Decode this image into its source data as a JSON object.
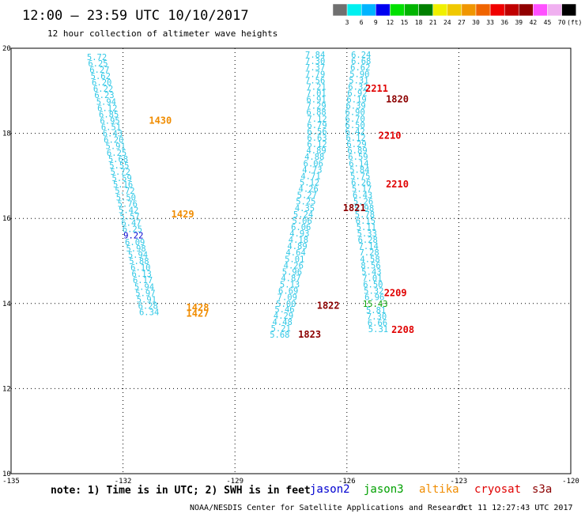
{
  "title": "12:00 – 23:59 UTC 10/10/2017",
  "subtitle": "12 hour collection of altimeter wave heights",
  "note": "note: 1) Time is in UTC; 2) SWH is in feet",
  "footer": "NOAA/NESDIS Center for Satellite Applications and Research",
  "footer_time": "Oct 11 12:27:43 UTC 2017",
  "colorbar": {
    "unit": "(ft)",
    "labels": [
      "3",
      "6",
      "9",
      "12",
      "15",
      "18",
      "21",
      "24",
      "27",
      "30",
      "33",
      "36",
      "39",
      "42",
      "45",
      "70"
    ],
    "colors": [
      "#707070",
      "#00f0f0",
      "#00b4ff",
      "#0000f0",
      "#00e000",
      "#00b400",
      "#008000",
      "#f0f000",
      "#f0c800",
      "#f09600",
      "#f06400",
      "#f00000",
      "#c00000",
      "#900000",
      "#ff50ff",
      "#f0b0f0",
      "#000000"
    ]
  },
  "legend": [
    {
      "label": "jason2",
      "color": "#0000d0"
    },
    {
      "label": "jason3",
      "color": "#00a000"
    },
    {
      "label": "altika",
      "color": "#f08c00"
    },
    {
      "label": "cryosat",
      "color": "#e00000"
    },
    {
      "label": "s3a",
      "color": "#8c0000"
    }
  ],
  "chart_data": {
    "type": "scatter",
    "xlim": [
      -135,
      -120
    ],
    "ylim": [
      10,
      20
    ],
    "xticks": [
      -132,
      -129,
      -126,
      -123
    ],
    "xtick_labels": [
      "-135",
      "-132",
      "-129",
      "-126",
      "-123",
      "-120"
    ],
    "yticks": [
      12,
      14,
      16,
      18
    ],
    "ytick_labels": [
      "10",
      "12",
      "14",
      "16",
      "18",
      "20"
    ],
    "grid": true,
    "tracks": [
      {
        "color": "#32c8e6",
        "points": [
          {
            "x": -132.7,
            "y": 19.8,
            "v": "5.72"
          },
          {
            "x": -132.67,
            "y": 19.65,
            "v": "6.25"
          },
          {
            "x": -132.63,
            "y": 19.5,
            "v": "6.27"
          },
          {
            "x": -132.6,
            "y": 19.35,
            "v": "5.62"
          },
          {
            "x": -132.57,
            "y": 19.2,
            "v": "6.20"
          },
          {
            "x": -132.53,
            "y": 19.05,
            "v": "6.22"
          },
          {
            "x": -132.5,
            "y": 18.9,
            "v": "6.23"
          },
          {
            "x": -132.45,
            "y": 18.75,
            "v": "5.94"
          },
          {
            "x": -132.42,
            "y": 18.6,
            "v": "6.12"
          },
          {
            "x": -132.38,
            "y": 18.45,
            "v": "6.85"
          },
          {
            "x": -132.35,
            "y": 18.3,
            "v": "6.95"
          },
          {
            "x": -132.32,
            "y": 18.15,
            "v": "6.51"
          },
          {
            "x": -132.28,
            "y": 18.0,
            "v": "6.43"
          },
          {
            "x": -132.25,
            "y": 17.85,
            "v": "6.20"
          },
          {
            "x": -132.2,
            "y": 17.7,
            "v": "5.91"
          },
          {
            "x": -132.17,
            "y": 17.55,
            "v": "6.25"
          },
          {
            "x": -132.13,
            "y": 17.4,
            "v": "5.68"
          },
          {
            "x": -132.1,
            "y": 17.25,
            "v": "5.55"
          },
          {
            "x": -132.07,
            "y": 17.1,
            "v": "5.72"
          },
          {
            "x": -132.03,
            "y": 16.95,
            "v": "5.59"
          },
          {
            "x": -132.0,
            "y": 16.8,
            "v": "5.16"
          },
          {
            "x": -131.95,
            "y": 16.65,
            "v": "5.72"
          },
          {
            "x": -131.92,
            "y": 16.5,
            "v": "5.50"
          },
          {
            "x": -131.88,
            "y": 16.35,
            "v": "5.76"
          },
          {
            "x": -131.85,
            "y": 16.2,
            "v": "5.42"
          },
          {
            "x": -131.82,
            "y": 16.05,
            "v": "5.57"
          },
          {
            "x": -131.78,
            "y": 15.9,
            "v": "6.47"
          },
          {
            "x": -131.75,
            "y": 15.75,
            "v": "6.25"
          },
          {
            "x": -131.72,
            "y": 15.6,
            "v": "9.22",
            "c": "#0000d0"
          },
          {
            "x": -131.68,
            "y": 15.45,
            "v": "6.09"
          },
          {
            "x": -131.65,
            "y": 15.3,
            "v": "5.98"
          },
          {
            "x": -131.6,
            "y": 15.15,
            "v": "5.94"
          },
          {
            "x": -131.57,
            "y": 15.0,
            "v": "5.88"
          },
          {
            "x": -131.53,
            "y": 14.85,
            "v": "6.10"
          },
          {
            "x": -131.5,
            "y": 14.7,
            "v": "6.13"
          },
          {
            "x": -131.47,
            "y": 14.55,
            "v": "6.17"
          },
          {
            "x": -131.43,
            "y": 14.4,
            "v": "5.94"
          },
          {
            "x": -131.4,
            "y": 14.25,
            "v": "5.97"
          },
          {
            "x": -131.37,
            "y": 14.1,
            "v": "5.91"
          },
          {
            "x": -131.33,
            "y": 13.95,
            "v": "6.28"
          },
          {
            "x": -131.3,
            "y": 13.8,
            "v": "6.34"
          }
        ]
      },
      {
        "color": "#32c8e6",
        "points": [
          {
            "x": -126.85,
            "y": 19.85,
            "v": "7.84"
          },
          {
            "x": -126.85,
            "y": 19.7,
            "v": "7.30"
          },
          {
            "x": -126.85,
            "y": 19.55,
            "v": "7.37"
          },
          {
            "x": -126.85,
            "y": 19.4,
            "v": "7.79"
          },
          {
            "x": -126.85,
            "y": 19.25,
            "v": "7.56"
          },
          {
            "x": -126.82,
            "y": 19.1,
            "v": "7.21"
          },
          {
            "x": -126.82,
            "y": 18.95,
            "v": "7.01"
          },
          {
            "x": -126.82,
            "y": 18.8,
            "v": "6.91"
          },
          {
            "x": -126.82,
            "y": 18.65,
            "v": "7.29"
          },
          {
            "x": -126.82,
            "y": 18.5,
            "v": "6.88"
          },
          {
            "x": -126.8,
            "y": 18.35,
            "v": "7.12"
          },
          {
            "x": -126.8,
            "y": 18.2,
            "v": "6.79"
          },
          {
            "x": -126.8,
            "y": 18.05,
            "v": "6.56"
          },
          {
            "x": -126.8,
            "y": 17.9,
            "v": "6.63"
          },
          {
            "x": -126.8,
            "y": 17.75,
            "v": "6.12"
          },
          {
            "x": -126.82,
            "y": 17.6,
            "v": "4.89"
          },
          {
            "x": -126.87,
            "y": 17.45,
            "v": "4.88"
          },
          {
            "x": -126.9,
            "y": 17.3,
            "v": "6.06"
          },
          {
            "x": -126.93,
            "y": 17.15,
            "v": "4.73"
          },
          {
            "x": -126.97,
            "y": 17.0,
            "v": "4.71"
          },
          {
            "x": -127.0,
            "y": 16.85,
            "v": "5.12"
          },
          {
            "x": -127.03,
            "y": 16.7,
            "v": "4.26"
          },
          {
            "x": -127.07,
            "y": 16.55,
            "v": "5.27"
          },
          {
            "x": -127.1,
            "y": 16.4,
            "v": "5.25"
          },
          {
            "x": -127.13,
            "y": 16.25,
            "v": "4.35"
          },
          {
            "x": -127.17,
            "y": 16.1,
            "v": "5.24"
          },
          {
            "x": -127.2,
            "y": 15.95,
            "v": "5.06"
          },
          {
            "x": -127.23,
            "y": 15.8,
            "v": "6.06"
          },
          {
            "x": -127.27,
            "y": 15.65,
            "v": "4.93"
          },
          {
            "x": -127.3,
            "y": 15.5,
            "v": "4.18"
          },
          {
            "x": -127.33,
            "y": 15.35,
            "v": "4.89"
          },
          {
            "x": -127.37,
            "y": 15.2,
            "v": "4.64"
          },
          {
            "x": -127.4,
            "y": 15.05,
            "v": "5.01"
          },
          {
            "x": -127.43,
            "y": 14.9,
            "v": "4.26"
          },
          {
            "x": -127.47,
            "y": 14.75,
            "v": "5.96"
          },
          {
            "x": -127.5,
            "y": 14.6,
            "v": "4.87"
          },
          {
            "x": -127.53,
            "y": 14.45,
            "v": "5.13"
          },
          {
            "x": -127.57,
            "y": 14.3,
            "v": "6.69"
          },
          {
            "x": -127.6,
            "y": 14.15,
            "v": "7.09"
          },
          {
            "x": -127.63,
            "y": 14.0,
            "v": "5.00"
          },
          {
            "x": -127.67,
            "y": 13.87,
            "v": "5.46"
          },
          {
            "x": -127.7,
            "y": 13.72,
            "v": "4.29"
          },
          {
            "x": -127.73,
            "y": 13.57,
            "v": "4.48"
          },
          {
            "x": -127.77,
            "y": 13.42,
            "v": "5.21"
          },
          {
            "x": -127.8,
            "y": 13.27,
            "v": "5.68"
          }
        ]
      },
      {
        "color": "#32c8e6",
        "points": [
          {
            "x": -125.62,
            "y": 19.85,
            "v": "6.24"
          },
          {
            "x": -125.62,
            "y": 19.7,
            "v": "6.68"
          },
          {
            "x": -125.64,
            "y": 19.55,
            "v": "6.62"
          },
          {
            "x": -125.66,
            "y": 19.4,
            "v": "5.90"
          },
          {
            "x": -125.68,
            "y": 19.25,
            "v": "5.31"
          },
          {
            "x": -125.7,
            "y": 19.1,
            "v": "6.32"
          },
          {
            "x": -125.72,
            "y": 18.95,
            "v": "6.92"
          },
          {
            "x": -125.74,
            "y": 18.8,
            "v": "6.19"
          },
          {
            "x": -125.76,
            "y": 18.65,
            "v": "6.39"
          },
          {
            "x": -125.78,
            "y": 18.5,
            "v": "6.90"
          },
          {
            "x": -125.78,
            "y": 18.35,
            "v": "6.70"
          },
          {
            "x": -125.78,
            "y": 18.2,
            "v": "6.50"
          },
          {
            "x": -125.78,
            "y": 18.05,
            "v": "6.42"
          },
          {
            "x": -125.76,
            "y": 17.9,
            "v": "6.12"
          },
          {
            "x": -125.74,
            "y": 17.75,
            "v": "6.29"
          },
          {
            "x": -125.72,
            "y": 17.6,
            "v": "6.89"
          },
          {
            "x": -125.7,
            "y": 17.45,
            "v": "6.59"
          },
          {
            "x": -125.68,
            "y": 17.3,
            "v": "6.14"
          },
          {
            "x": -125.66,
            "y": 17.15,
            "v": "5.84"
          },
          {
            "x": -125.64,
            "y": 17.0,
            "v": "5.75"
          },
          {
            "x": -125.62,
            "y": 16.85,
            "v": "6.26"
          },
          {
            "x": -125.6,
            "y": 16.7,
            "v": "5.17"
          },
          {
            "x": -125.58,
            "y": 16.55,
            "v": "6.43"
          },
          {
            "x": -125.56,
            "y": 16.4,
            "v": "5.26"
          },
          {
            "x": -125.54,
            "y": 16.25,
            "v": "5.98"
          },
          {
            "x": -125.52,
            "y": 16.1,
            "v": "5.78"
          },
          {
            "x": -125.5,
            "y": 15.95,
            "v": "6.15"
          },
          {
            "x": -125.48,
            "y": 15.8,
            "v": "5.11"
          },
          {
            "x": -125.46,
            "y": 15.65,
            "v": "5.33"
          },
          {
            "x": -125.44,
            "y": 15.5,
            "v": "6.28"
          },
          {
            "x": -125.42,
            "y": 15.35,
            "v": "7.14"
          },
          {
            "x": -125.4,
            "y": 15.2,
            "v": "7.28"
          },
          {
            "x": -125.38,
            "y": 15.05,
            "v": "4.58"
          },
          {
            "x": -125.36,
            "y": 14.9,
            "v": "8.56"
          },
          {
            "x": -125.34,
            "y": 14.75,
            "v": "5.43"
          },
          {
            "x": -125.32,
            "y": 14.6,
            "v": "7.01"
          },
          {
            "x": -125.3,
            "y": 14.45,
            "v": "6.50"
          },
          {
            "x": -125.28,
            "y": 14.3,
            "v": "5.32"
          },
          {
            "x": -125.26,
            "y": 14.15,
            "v": "6.96"
          },
          {
            "x": -125.24,
            "y": 14.0,
            "v": "15.43",
            "c": "#00a000"
          },
          {
            "x": -125.22,
            "y": 13.85,
            "v": "5.81"
          },
          {
            "x": -125.2,
            "y": 13.7,
            "v": "7.30"
          },
          {
            "x": -125.18,
            "y": 13.55,
            "v": "6.66"
          },
          {
            "x": -125.16,
            "y": 13.4,
            "v": "5.31"
          }
        ]
      }
    ],
    "time_labels": [
      {
        "x": -131.0,
        "y": 18.3,
        "t": "1430",
        "color": "#f08c00"
      },
      {
        "x": -130.4,
        "y": 16.1,
        "t": "1429",
        "color": "#f08c00"
      },
      {
        "x": -130.0,
        "y": 13.9,
        "t": "1428",
        "color": "#f08c00"
      },
      {
        "x": -130.0,
        "y": 13.76,
        "t": "1427",
        "color": "#f08c00"
      },
      {
        "x": -125.2,
        "y": 19.05,
        "t": "2211",
        "color": "#e00000"
      },
      {
        "x": -124.65,
        "y": 18.8,
        "t": "1820",
        "color": "#8c0000"
      },
      {
        "x": -124.85,
        "y": 17.95,
        "t": "2210",
        "color": "#e00000"
      },
      {
        "x": -124.65,
        "y": 16.8,
        "t": "2210",
        "color": "#e00000"
      },
      {
        "x": -125.8,
        "y": 16.25,
        "t": "1821",
        "color": "#8c0000"
      },
      {
        "x": -124.7,
        "y": 14.25,
        "t": "2209",
        "color": "#e00000"
      },
      {
        "x": -126.5,
        "y": 13.95,
        "t": "1822",
        "color": "#8c0000"
      },
      {
        "x": -124.5,
        "y": 13.38,
        "t": "2208",
        "color": "#e00000"
      },
      {
        "x": -127.0,
        "y": 13.27,
        "t": "1823",
        "color": "#8c0000"
      }
    ]
  }
}
